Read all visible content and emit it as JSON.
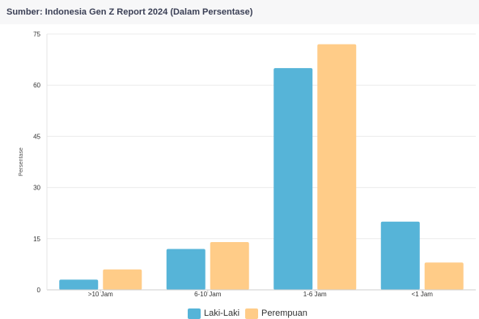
{
  "header": {
    "source_title": "Sumber: Indonesia Gen Z Report 2024 (Dalam Persentase)"
  },
  "chart_data": {
    "type": "bar",
    "categories": [
      ">10 Jam",
      "6-10 Jam",
      "1-6 Jam",
      "<1 Jam"
    ],
    "series": [
      {
        "name": "Laki-Laki",
        "color": "#56b4d8",
        "values": [
          3,
          12,
          65,
          20
        ]
      },
      {
        "name": "Perempuan",
        "color": "#ffcc88",
        "values": [
          6,
          14,
          72,
          8
        ]
      }
    ],
    "ylabel": "Persentase",
    "xlabel": "",
    "ylim": [
      0,
      75
    ],
    "yticks": [
      0,
      15,
      30,
      45,
      60,
      75
    ],
    "grid": true,
    "legend_position": "bottom"
  }
}
